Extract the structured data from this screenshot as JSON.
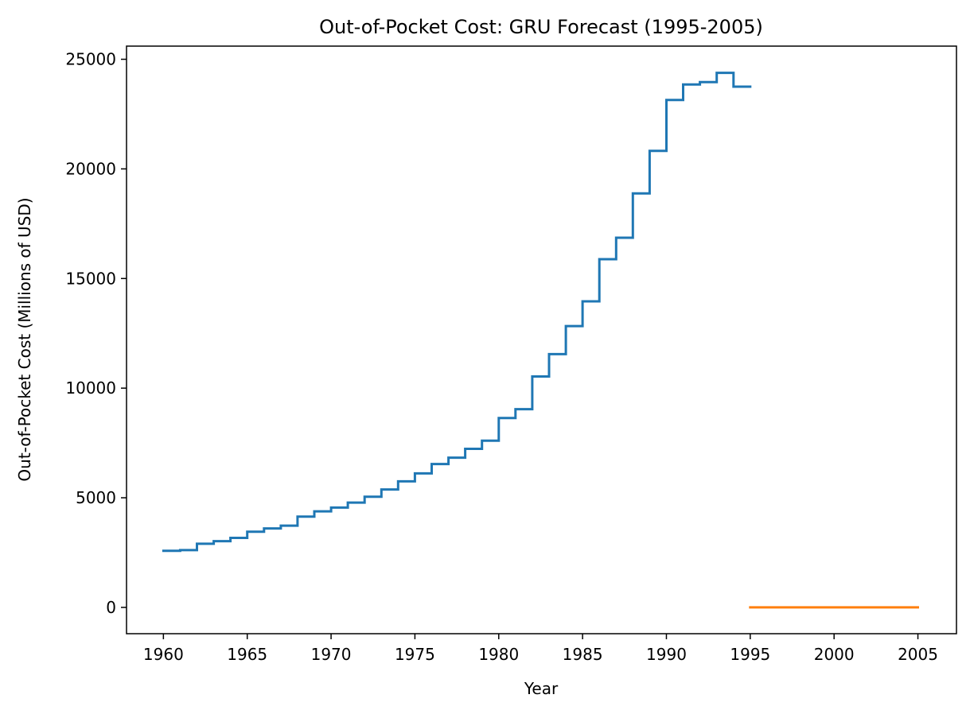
{
  "chart_data": {
    "type": "line",
    "title": "Out-of-Pocket Cost: GRU Forecast (1995-2005)",
    "xlabel": "Year",
    "ylabel": "Out-of-Pocket Cost (Millions of USD)",
    "xlim": [
      1957.8,
      2007.3
    ],
    "ylim": [
      -1200,
      25600
    ],
    "xticks": [
      1960,
      1965,
      1970,
      1975,
      1980,
      1985,
      1990,
      1995,
      2000,
      2005
    ],
    "yticks": [
      0,
      5000,
      10000,
      15000,
      20000,
      25000
    ],
    "xtick_labels": [
      "1960",
      "1965",
      "1970",
      "1975",
      "1980",
      "1985",
      "1990",
      "1995",
      "2000",
      "2005"
    ],
    "ytick_labels": [
      "0",
      "5000",
      "10000",
      "15000",
      "20000",
      "25000"
    ],
    "grid": false,
    "legend": "none",
    "series": [
      {
        "color": "#1f77b4",
        "step": true,
        "x": [
          1960,
          1961,
          1962,
          1963,
          1964,
          1965,
          1966,
          1967,
          1968,
          1969,
          1970,
          1971,
          1972,
          1973,
          1974,
          1975,
          1976,
          1977,
          1978,
          1979,
          1980,
          1981,
          1982,
          1983,
          1984,
          1985,
          1986,
          1987,
          1988,
          1989,
          1990,
          1991,
          1992,
          1993,
          1994,
          1995
        ],
        "values": [
          2580,
          2610,
          2900,
          3020,
          3170,
          3450,
          3600,
          3730,
          4140,
          4380,
          4550,
          4780,
          5050,
          5380,
          5750,
          6110,
          6540,
          6830,
          7230,
          7600,
          8640,
          9040,
          10530,
          11550,
          12830,
          13960,
          15880,
          16860,
          18880,
          20820,
          23140,
          23850,
          23960,
          24380,
          23750,
          23750
        ]
      },
      {
        "color": "#ff7f0e",
        "step": false,
        "x": [
          1995,
          2005
        ],
        "values": [
          0,
          0
        ]
      }
    ]
  }
}
